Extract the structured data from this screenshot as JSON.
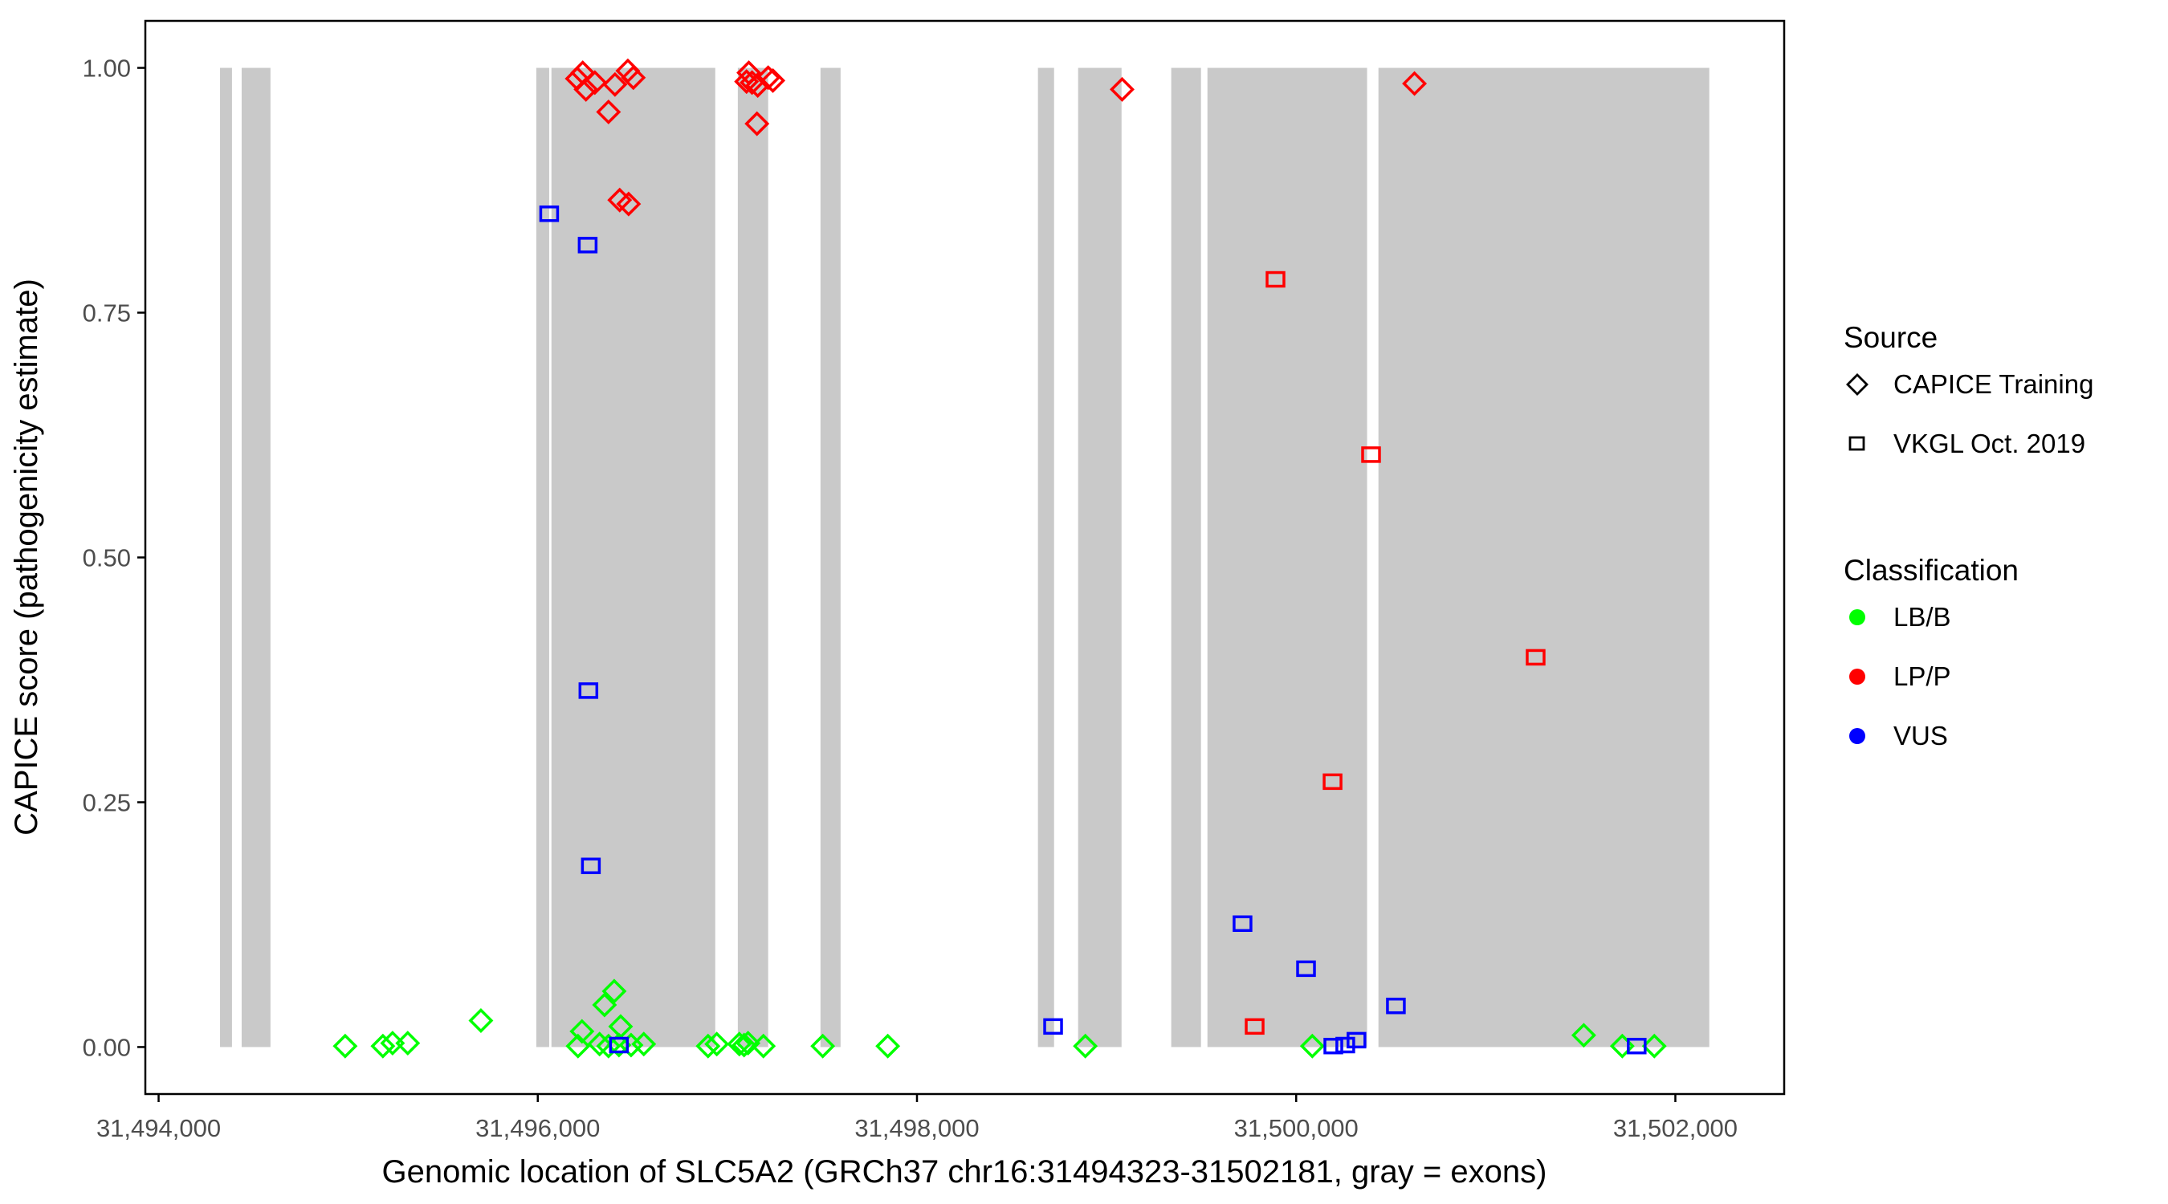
{
  "figure": {
    "xlabel": "Genomic location of SLC5A2 (GRCh37 chr16:31494323-31502181, gray = exons)",
    "ylabel": "CAPICE score (pathogenicity estimate)"
  },
  "legend": {
    "source": {
      "title": "Source",
      "items": [
        {
          "label": "CAPICE Training",
          "glyph": "diamond"
        },
        {
          "label": "VKGL Oct. 2019",
          "glyph": "square"
        }
      ]
    },
    "classification": {
      "title": "Classification",
      "items": [
        {
          "label": "LB/B",
          "color": "#00ff00"
        },
        {
          "label": "LP/P",
          "color": "#ff0000"
        },
        {
          "label": "VUS",
          "color": "#0000ff"
        }
      ]
    }
  },
  "chart_data": {
    "type": "scatter",
    "title": "",
    "xlabel": "Genomic location of SLC5A2 (GRCh37 chr16:31494323-31502181, gray = exons)",
    "ylabel": "CAPICE score (pathogenicity estimate)",
    "xlim": [
      31493930,
      31502574
    ],
    "ylim": [
      -0.048,
      1.048
    ],
    "grid": "off",
    "legend_position": "right",
    "x_ticks": {
      "values": [
        31494000,
        31496000,
        31498000,
        31500000,
        31502000
      ],
      "labels": [
        "31,494,000",
        "31,496,000",
        "31,498,000",
        "31,500,000",
        "31,502,000"
      ]
    },
    "y_ticks": {
      "values": [
        0,
        0.25,
        0.5,
        0.75,
        1
      ],
      "labels": [
        "0.00",
        "0.25",
        "0.50",
        "0.75",
        "1.00"
      ]
    },
    "exon_color": "#c9c9c9",
    "exons_bp": [
      [
        31494324,
        31494387
      ],
      [
        31494438,
        31494590
      ],
      [
        31495992,
        31496060
      ],
      [
        31496072,
        31496936
      ],
      [
        31497055,
        31497215
      ],
      [
        31497491,
        31497597
      ],
      [
        31498638,
        31498723
      ],
      [
        31498850,
        31499079
      ],
      [
        31499341,
        31499498
      ],
      [
        31499532,
        31500374
      ],
      [
        31500434,
        31502179
      ]
    ],
    "classification_colors": {
      "LB/B": "#00ff00",
      "LP/P": "#ff0000",
      "VUS": "#0000ff"
    },
    "source_shapes": {
      "CAPICE Training": "diamond",
      "VKGL Oct. 2019": "square"
    },
    "points": [
      {
        "bp": 31494984,
        "score": 0.001,
        "source": "CAPICE Training",
        "classification": "LB/B"
      },
      {
        "bp": 31495183,
        "score": 0.001,
        "source": "CAPICE Training",
        "classification": "LB/B"
      },
      {
        "bp": 31495234,
        "score": 0.004,
        "source": "CAPICE Training",
        "classification": "LB/B"
      },
      {
        "bp": 31495314,
        "score": 0.004,
        "source": "CAPICE Training",
        "classification": "LB/B"
      },
      {
        "bp": 31495700,
        "score": 0.027,
        "source": "CAPICE Training",
        "classification": "LB/B"
      },
      {
        "bp": 31496212,
        "score": 0.001,
        "source": "CAPICE Training",
        "classification": "LB/B"
      },
      {
        "bp": 31496233,
        "score": 0.016,
        "source": "CAPICE Training",
        "classification": "LB/B"
      },
      {
        "bp": 31496326,
        "score": 0.003,
        "source": "CAPICE Training",
        "classification": "LB/B"
      },
      {
        "bp": 31496352,
        "score": 0.043,
        "source": "CAPICE Training",
        "classification": "LB/B"
      },
      {
        "bp": 31496373,
        "score": 0.001,
        "source": "CAPICE Training",
        "classification": "LB/B"
      },
      {
        "bp": 31496403,
        "score": 0.057,
        "source": "CAPICE Training",
        "classification": "LB/B"
      },
      {
        "bp": 31496428,
        "score": 0.002,
        "source": "CAPICE Training",
        "classification": "LB/B"
      },
      {
        "bp": 31496437,
        "score": 0.021,
        "source": "CAPICE Training",
        "classification": "LB/B"
      },
      {
        "bp": 31496492,
        "score": 0.002,
        "source": "CAPICE Training",
        "classification": "LB/B"
      },
      {
        "bp": 31496559,
        "score": 0.003,
        "source": "CAPICE Training",
        "classification": "LB/B"
      },
      {
        "bp": 31496898,
        "score": 0.001,
        "source": "CAPICE Training",
        "classification": "LB/B"
      },
      {
        "bp": 31496944,
        "score": 0.003,
        "source": "CAPICE Training",
        "classification": "LB/B"
      },
      {
        "bp": 31497063,
        "score": 0.003,
        "source": "CAPICE Training",
        "classification": "LB/B"
      },
      {
        "bp": 31497088,
        "score": 0.002,
        "source": "CAPICE Training",
        "classification": "LB/B"
      },
      {
        "bp": 31497109,
        "score": 0.004,
        "source": "CAPICE Training",
        "classification": "LB/B"
      },
      {
        "bp": 31497190,
        "score": 0.001,
        "source": "CAPICE Training",
        "classification": "LB/B"
      },
      {
        "bp": 31497503,
        "score": 0.001,
        "source": "CAPICE Training",
        "classification": "LB/B"
      },
      {
        "bp": 31497846,
        "score": 0.001,
        "source": "CAPICE Training",
        "classification": "LB/B"
      },
      {
        "bp": 31498888,
        "score": 0.001,
        "source": "CAPICE Training",
        "classification": "LB/B"
      },
      {
        "bp": 31500085,
        "score": 0.001,
        "source": "CAPICE Training",
        "classification": "LB/B"
      },
      {
        "bp": 31501517,
        "score": 0.012,
        "source": "CAPICE Training",
        "classification": "LB/B"
      },
      {
        "bp": 31501720,
        "score": 0.001,
        "source": "CAPICE Training",
        "classification": "LB/B"
      },
      {
        "bp": 31501889,
        "score": 0.001,
        "source": "CAPICE Training",
        "classification": "LB/B"
      },
      {
        "bp": 31496208,
        "score": 0.989,
        "source": "CAPICE Training",
        "classification": "LP/P"
      },
      {
        "bp": 31496237,
        "score": 0.995,
        "source": "CAPICE Training",
        "classification": "LP/P"
      },
      {
        "bp": 31496254,
        "score": 0.978,
        "source": "CAPICE Training",
        "classification": "LP/P"
      },
      {
        "bp": 31496301,
        "score": 0.985,
        "source": "CAPICE Training",
        "classification": "LP/P"
      },
      {
        "bp": 31496373,
        "score": 0.955,
        "source": "CAPICE Training",
        "classification": "LP/P"
      },
      {
        "bp": 31496407,
        "score": 0.983,
        "source": "CAPICE Training",
        "classification": "LP/P"
      },
      {
        "bp": 31496432,
        "score": 0.865,
        "source": "CAPICE Training",
        "classification": "LP/P"
      },
      {
        "bp": 31496475,
        "score": 0.997,
        "source": "CAPICE Training",
        "classification": "LP/P"
      },
      {
        "bp": 31496479,
        "score": 0.861,
        "source": "CAPICE Training",
        "classification": "LP/P"
      },
      {
        "bp": 31496504,
        "score": 0.99,
        "source": "CAPICE Training",
        "classification": "LP/P"
      },
      {
        "bp": 31497101,
        "score": 0.986,
        "source": "CAPICE Training",
        "classification": "LP/P"
      },
      {
        "bp": 31497113,
        "score": 0.995,
        "source": "CAPICE Training",
        "classification": "LP/P"
      },
      {
        "bp": 31497130,
        "score": 0.985,
        "source": "CAPICE Training",
        "classification": "LP/P"
      },
      {
        "bp": 31497156,
        "score": 0.943,
        "source": "CAPICE Training",
        "classification": "LP/P"
      },
      {
        "bp": 31497160,
        "score": 0.982,
        "source": "CAPICE Training",
        "classification": "LP/P"
      },
      {
        "bp": 31497215,
        "score": 0.99,
        "source": "CAPICE Training",
        "classification": "LP/P"
      },
      {
        "bp": 31497240,
        "score": 0.987,
        "source": "CAPICE Training",
        "classification": "LP/P"
      },
      {
        "bp": 31499082,
        "score": 0.978,
        "source": "CAPICE Training",
        "classification": "LP/P"
      },
      {
        "bp": 31500624,
        "score": 0.984,
        "source": "CAPICE Training",
        "classification": "LP/P"
      },
      {
        "bp": 31499781,
        "score": 0.021,
        "source": "VKGL Oct. 2019",
        "classification": "LP/P"
      },
      {
        "bp": 31499891,
        "score": 0.784,
        "source": "VKGL Oct. 2019",
        "classification": "LP/P"
      },
      {
        "bp": 31500192,
        "score": 0.271,
        "source": "VKGL Oct. 2019",
        "classification": "LP/P"
      },
      {
        "bp": 31500395,
        "score": 0.605,
        "source": "VKGL Oct. 2019",
        "classification": "LP/P"
      },
      {
        "bp": 31501263,
        "score": 0.398,
        "source": "VKGL Oct. 2019",
        "classification": "LP/P"
      },
      {
        "bp": 31496060,
        "score": 0.851,
        "source": "VKGL Oct. 2019",
        "classification": "VUS"
      },
      {
        "bp": 31496263,
        "score": 0.819,
        "source": "VKGL Oct. 2019",
        "classification": "VUS"
      },
      {
        "bp": 31496267,
        "score": 0.364,
        "source": "VKGL Oct. 2019",
        "classification": "VUS"
      },
      {
        "bp": 31496280,
        "score": 0.185,
        "source": "VKGL Oct. 2019",
        "classification": "VUS"
      },
      {
        "bp": 31496428,
        "score": 0.002,
        "source": "VKGL Oct. 2019",
        "classification": "VUS"
      },
      {
        "bp": 31498718,
        "score": 0.021,
        "source": "VKGL Oct. 2019",
        "classification": "VUS"
      },
      {
        "bp": 31499717,
        "score": 0.126,
        "source": "VKGL Oct. 2019",
        "classification": "VUS"
      },
      {
        "bp": 31500052,
        "score": 0.08,
        "source": "VKGL Oct. 2019",
        "classification": "VUS"
      },
      {
        "bp": 31500196,
        "score": 0.001,
        "source": "VKGL Oct. 2019",
        "classification": "VUS"
      },
      {
        "bp": 31500259,
        "score": 0.002,
        "source": "VKGL Oct. 2019",
        "classification": "VUS"
      },
      {
        "bp": 31500318,
        "score": 0.007,
        "source": "VKGL Oct. 2019",
        "classification": "VUS"
      },
      {
        "bp": 31500526,
        "score": 0.042,
        "source": "VKGL Oct. 2019",
        "classification": "VUS"
      },
      {
        "bp": 31501796,
        "score": 0.001,
        "source": "VKGL Oct. 2019",
        "classification": "VUS"
      }
    ]
  }
}
